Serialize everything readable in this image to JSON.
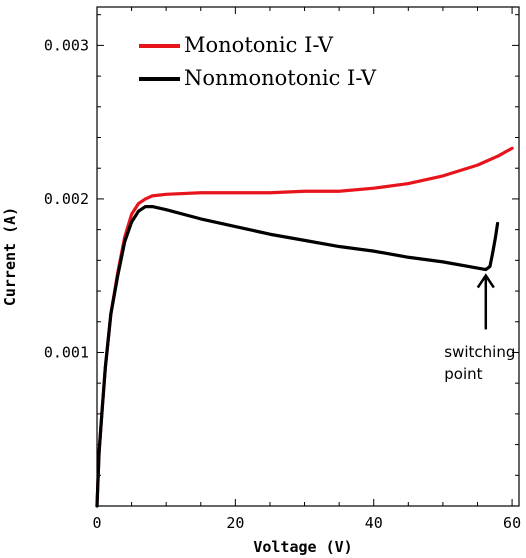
{
  "chart_data": {
    "type": "line",
    "xlabel": "Voltage (V)",
    "ylabel": "Current (A)",
    "xlim": [
      0,
      61
    ],
    "ylim": [
      0,
      0.00325
    ],
    "x_ticks": [
      0,
      20,
      40,
      60
    ],
    "x_tick_labels": [
      "0",
      "20",
      "40",
      "60"
    ],
    "y_ticks": [
      0.001,
      0.002,
      0.003
    ],
    "y_tick_labels": [
      "0.001",
      "0.002",
      "0.003"
    ],
    "grid": false,
    "legend_position": "top-left",
    "series": [
      {
        "name": "Monotonic I-V",
        "color": "#e8141c",
        "points": [
          [
            0,
            0.0
          ],
          [
            0.3,
            0.00035
          ],
          [
            0.7,
            0.0006
          ],
          [
            1.2,
            0.0009
          ],
          [
            2.0,
            0.00125
          ],
          [
            3.0,
            0.00152
          ],
          [
            4.0,
            0.00175
          ],
          [
            5.0,
            0.0019
          ],
          [
            6.0,
            0.00197
          ],
          [
            7.0,
            0.002
          ],
          [
            8.0,
            0.00202
          ],
          [
            10.0,
            0.00203
          ],
          [
            15.0,
            0.00204
          ],
          [
            20.0,
            0.00204
          ],
          [
            25.0,
            0.00204
          ],
          [
            30.0,
            0.00205
          ],
          [
            35.0,
            0.00205
          ],
          [
            40.0,
            0.00207
          ],
          [
            45.0,
            0.0021
          ],
          [
            50.0,
            0.00215
          ],
          [
            55.0,
            0.00222
          ],
          [
            58.0,
            0.00228
          ],
          [
            60.0,
            0.00233
          ]
        ]
      },
      {
        "name": "Nonmonotonic I-V",
        "color": "#000000",
        "points": [
          [
            0,
            0.0
          ],
          [
            0.3,
            0.00035
          ],
          [
            0.7,
            0.0006
          ],
          [
            1.2,
            0.0009
          ],
          [
            2.0,
            0.00125
          ],
          [
            3.0,
            0.0015
          ],
          [
            4.0,
            0.00172
          ],
          [
            5.0,
            0.00185
          ],
          [
            6.0,
            0.00192
          ],
          [
            7.0,
            0.00195
          ],
          [
            8.0,
            0.00195
          ],
          [
            10.0,
            0.00193
          ],
          [
            15.0,
            0.00187
          ],
          [
            20.0,
            0.00182
          ],
          [
            25.0,
            0.00177
          ],
          [
            30.0,
            0.00173
          ],
          [
            35.0,
            0.00169
          ],
          [
            40.0,
            0.00166
          ],
          [
            45.0,
            0.00162
          ],
          [
            50.0,
            0.00159
          ],
          [
            55.0,
            0.00155
          ],
          [
            56.2,
            0.00154
          ],
          [
            56.8,
            0.00156
          ],
          [
            57.2,
            0.00165
          ],
          [
            57.6,
            0.00175
          ],
          [
            57.9,
            0.00184
          ]
        ]
      }
    ],
    "annotations": [
      {
        "text_lines": [
          "switching",
          "point"
        ],
        "arrow_to": [
          56.2,
          0.00154
        ],
        "arrow_from": [
          56.2,
          0.00115
        ],
        "text_at": [
          50.2,
          0.00097
        ]
      }
    ]
  }
}
